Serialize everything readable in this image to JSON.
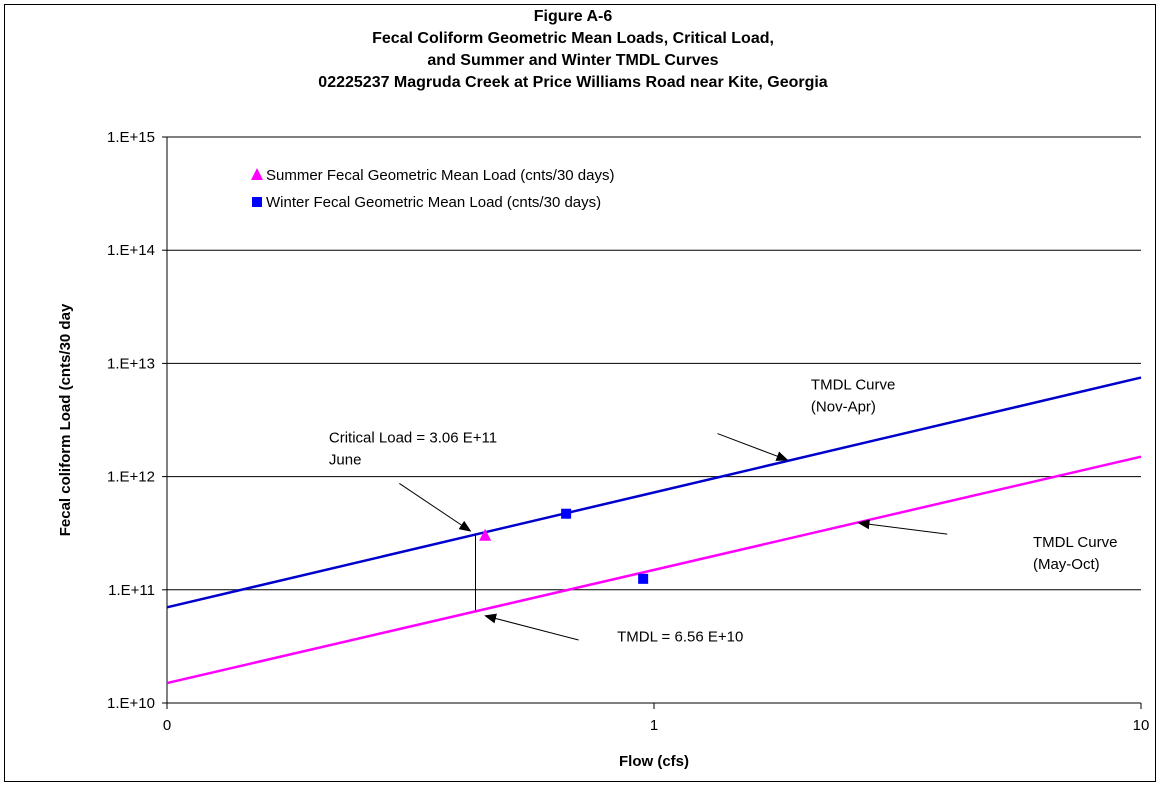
{
  "chart_data": {
    "type": "scatter",
    "title_lines": [
      "Figure A-6",
      "Fecal Coliform Geometric Mean Loads,  Critical Load,",
      "and Summer and Winter TMDL Curves",
      "02225237  Magruda Creek at Price Williams Road near Kite, Georgia"
    ],
    "xlabel": "Flow    (cfs)",
    "ylabel": "Fecal coliform Load  (cnts/30 day",
    "x_scale": "log",
    "y_scale": "log",
    "xlim": [
      0.1,
      10
    ],
    "ylim": [
      10000000000.0,
      1000000000000000.0
    ],
    "x_tick_labels": [
      {
        "value": 0.1,
        "label": "0"
      },
      {
        "value": 1,
        "label": "1"
      },
      {
        "value": 10,
        "label": "10"
      }
    ],
    "y_tick_labels": [
      {
        "value": 10000000000.0,
        "label": "1.E+10"
      },
      {
        "value": 100000000000.0,
        "label": "1.E+11"
      },
      {
        "value": 1000000000000.0,
        "label": "1.E+12"
      },
      {
        "value": 10000000000000.0,
        "label": "1.E+13"
      },
      {
        "value": 100000000000000.0,
        "label": "1.E+14"
      },
      {
        "value": 1000000000000000.0,
        "label": "1.E+15"
      }
    ],
    "grid": "horizontal",
    "legend_position": "top-left",
    "series": [
      {
        "name": "Summer Fecal Geometric Mean Load (cnts/30 days)",
        "kind": "points",
        "marker": "triangle",
        "color": "#FF00FF",
        "points": [
          [
            0.45,
            300000000000.0
          ]
        ]
      },
      {
        "name": "Winter Fecal Geometric Mean Load (cnts/30 days)",
        "kind": "points",
        "marker": "square",
        "color": "#0000FF",
        "points": [
          [
            0.66,
            470000000000.0
          ],
          [
            0.95,
            125000000000.0
          ]
        ]
      }
    ],
    "curves": [
      {
        "kind": "line",
        "color": "#0000CC",
        "points": [
          [
            0.1,
            70000000000.0
          ],
          [
            10,
            7500000000000.0
          ]
        ]
      },
      {
        "kind": "line",
        "color": "#FF00FF",
        "points": [
          [
            0.1,
            15000000000.0
          ],
          [
            10,
            1500000000000.0
          ]
        ]
      }
    ],
    "critical_segment": {
      "x": 0.43,
      "y_from": 65600000000.0,
      "y_to": 306000000000.0
    },
    "annotations": [
      {
        "lines": [
          "Critical Load = 3.06 E+11",
          "June"
        ],
        "anchor": [
          0.215,
          2000000000000.0
        ],
        "arrow_from": [
          0.3,
          870000000000.0
        ],
        "arrow_to": [
          0.42,
          330000000000.0
        ]
      },
      {
        "lines": [
          "TMDL Curve",
          "(Nov-Apr)"
        ],
        "anchor": [
          2.1,
          5900000000000.0
        ],
        "arrow_from": [
          1.35,
          2400000000000.0
        ],
        "arrow_to": [
          1.88,
          1400000000000.0
        ]
      },
      {
        "lines": [
          "TMDL Curve",
          "(May-Oct)"
        ],
        "anchor": [
          6.0,
          240000000000.0
        ],
        "arrow_from": [
          4.0,
          310000000000.0
        ],
        "arrow_to": [
          2.63,
          390000000000.0
        ]
      },
      {
        "lines": [
          "TMDL = 6.56 E+10"
        ],
        "anchor": [
          0.84,
          35000000000.0
        ],
        "arrow_from": [
          0.7,
          36000000000.0
        ],
        "arrow_to": [
          0.45,
          59000000000.0
        ]
      }
    ]
  }
}
